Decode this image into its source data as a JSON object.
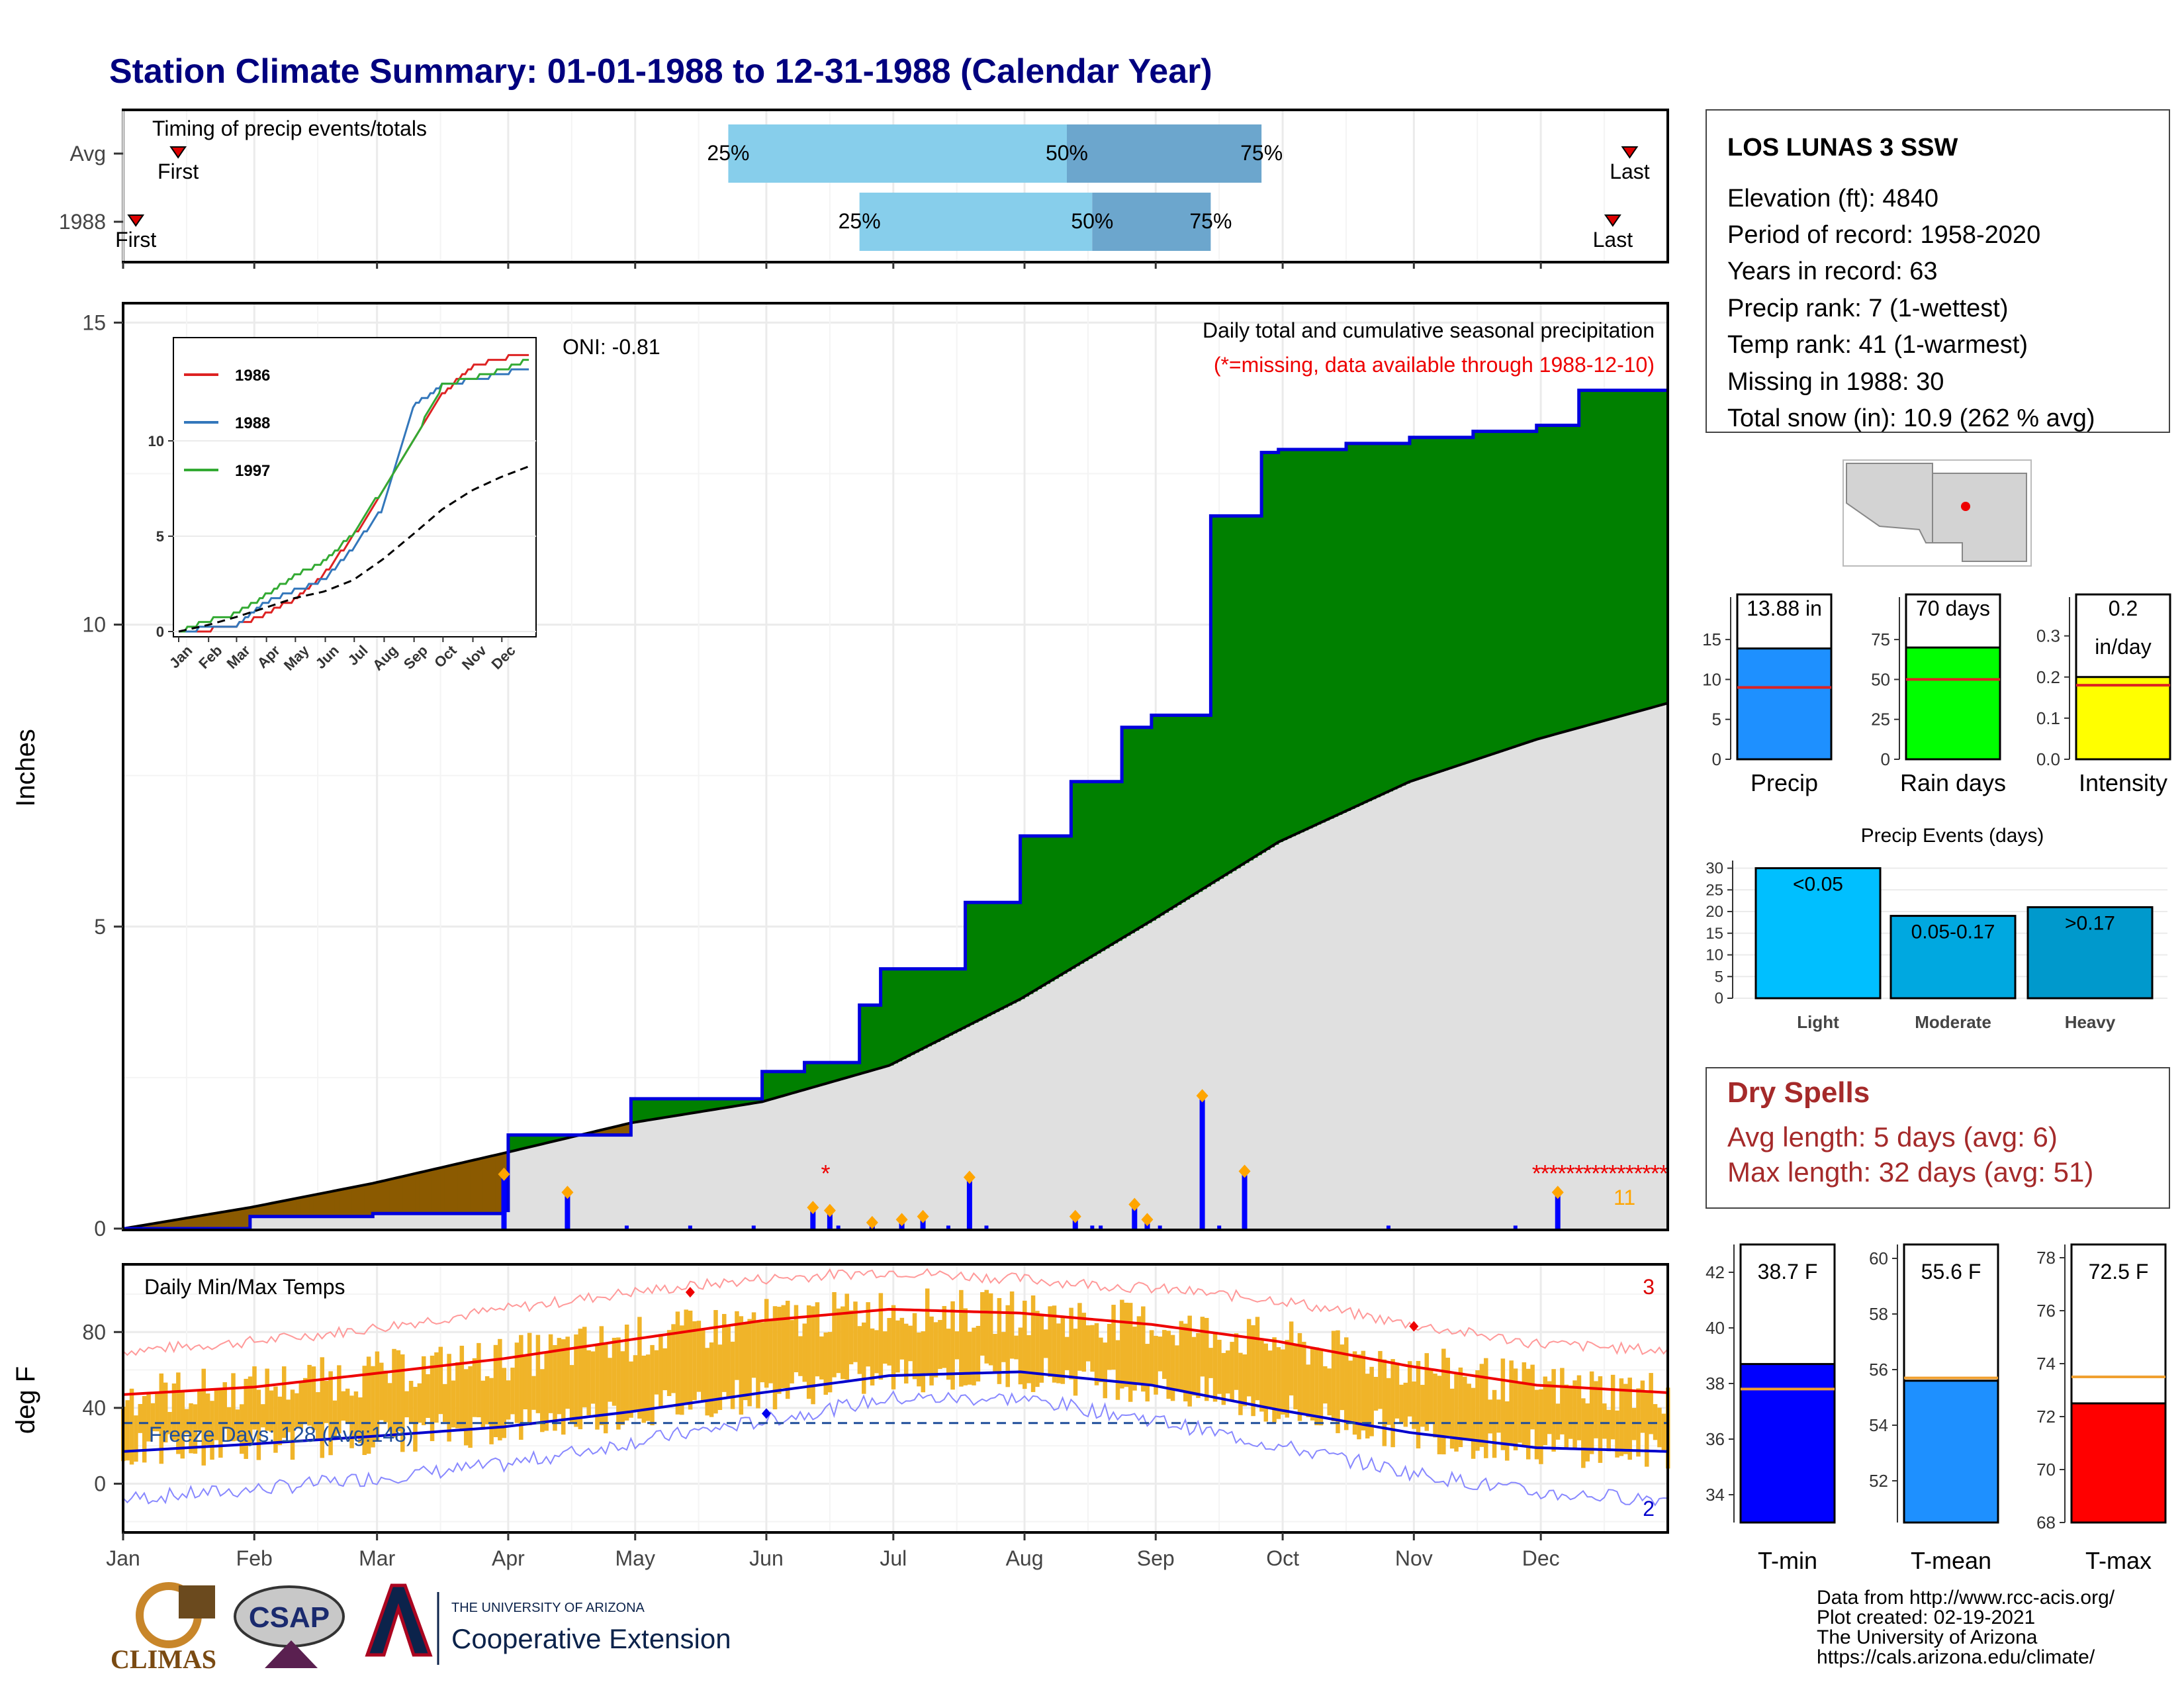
{
  "title": "Station Climate Summary: 01-01-1988 to 12-31-1988 (Calendar Year)",
  "months": [
    "Jan",
    "Feb",
    "Mar",
    "Apr",
    "May",
    "Jun",
    "Jul",
    "Aug",
    "Sep",
    "Oct",
    "Nov",
    "Dec"
  ],
  "timing": {
    "label": "Timing of precip events/totals",
    "row_labels": [
      "Avg",
      "1988"
    ],
    "first_label": "First",
    "last_label": "Last",
    "pct_labels": [
      "25%",
      "50%",
      "75%"
    ],
    "avg": {
      "first_day": 14,
      "q25": 144,
      "q50": 224,
      "q75": 270,
      "last_day": 357
    },
    "year": {
      "first_day": 4,
      "q25": 175,
      "q50": 230,
      "q75": 258,
      "last_day": 353
    }
  },
  "precip_panel": {
    "ylabel": "Inches",
    "yticks": [
      "0",
      "5",
      "10",
      "15"
    ],
    "oni_label": "ONI: -0.81",
    "caption": "Daily total and cumulative seasonal precipitation",
    "missing_note": "(*=missing, data available through 1988-12-10)",
    "missing_count": "11",
    "colors": {
      "above_avg": "#008000",
      "below_avg": "#8B5A00",
      "avg_area": "#e0e0e0",
      "line": "#0000dd",
      "missing": "#ff0000"
    }
  },
  "inset": {
    "yticks": [
      "0",
      "5",
      "10"
    ],
    "months": [
      "Jan",
      "Feb",
      "Mar",
      "Apr",
      "May",
      "Jun",
      "Jul",
      "Aug",
      "Sep",
      "Oct",
      "Nov",
      "Dec"
    ],
    "legend": [
      {
        "name": "1986",
        "color": "#dd2222"
      },
      {
        "name": "1988",
        "color": "#3377bb"
      },
      {
        "name": "1997",
        "color": "#33aa33"
      }
    ]
  },
  "temp_panel": {
    "ylabel": "deg F",
    "yticks": [
      "0",
      "40",
      "80"
    ],
    "title": "Daily Min/Max Temps",
    "freeze_label": "Freeze Days: 128 (Avg:148)",
    "max_records": "3",
    "min_records": "2"
  },
  "station": {
    "name": "LOS LUNAS 3 SSW",
    "lines": [
      "Elevation (ft): 4840",
      "Period of record: 1958-2020",
      "Years in record: 63",
      "Precip rank: 7 (1-wettest)",
      "Temp rank: 41 (1-warmest)",
      "Missing in 1988: 30",
      "Total snow (in): 10.9 (262 % avg)"
    ]
  },
  "precip_bars": [
    {
      "label": "13.88 in",
      "name": "Precip",
      "value": 13.88,
      "avg": 9.0,
      "max": 17,
      "ticks": [
        "0",
        "5",
        "10",
        "15"
      ],
      "color": "#1e90ff"
    },
    {
      "label": "70 days",
      "name": "Rain days",
      "value": 70,
      "avg": 50,
      "max": 85,
      "ticks": [
        "0",
        "25",
        "50",
        "75"
      ],
      "color": "#00ff00"
    },
    {
      "label": "0.2",
      "label2": "in/day",
      "name": "Intensity",
      "value": 0.2,
      "avg": 0.18,
      "max": 0.33,
      "ticks": [
        "0.0",
        "0.1",
        "0.2",
        "0.3"
      ],
      "color": "#ffff00"
    }
  ],
  "events": {
    "title": "Precip Events (days)",
    "yticks": [
      "0",
      "5",
      "10",
      "15",
      "20",
      "25",
      "30"
    ],
    "bars": [
      {
        "name": "Light",
        "label": "<0.05",
        "value": 30,
        "color": "#00bfff"
      },
      {
        "name": "Moderate",
        "label": "0.05-0.17",
        "value": 19,
        "color": "#00a8e0"
      },
      {
        "name": "Heavy",
        "label": ">0.17",
        "value": 21,
        "color": "#0099cc"
      }
    ]
  },
  "dry_spells": {
    "title": "Dry Spells",
    "avg_length": "Avg length: 5 days (avg: 6)",
    "max_length": "Max length: 32 days (avg: 51)"
  },
  "temp_bars": [
    {
      "label": "38.7 F",
      "name": "T-min",
      "value": 38.7,
      "avg": 37.8,
      "min": 33,
      "max": 43,
      "ticks": [
        "34",
        "36",
        "38",
        "40",
        "42"
      ],
      "color": "#0000ff"
    },
    {
      "label": "55.6 F",
      "name": "T-mean",
      "value": 55.6,
      "avg": 55.7,
      "min": 50.5,
      "max": 60.5,
      "ticks": [
        "52",
        "54",
        "56",
        "58",
        "60"
      ],
      "color": "#1e90ff"
    },
    {
      "label": "72.5 F",
      "name": "T-max",
      "value": 72.5,
      "avg": 73.5,
      "min": 68,
      "max": 78.5,
      "ticks": [
        "68",
        "70",
        "72",
        "74",
        "76",
        "78"
      ],
      "color": "#ff0000"
    }
  ],
  "footer": {
    "credits": [
      "Data from http://www.rcc-acis.org/",
      "Plot created: 02-19-2021",
      "The University of Arizona",
      "https://cals.arizona.edu/climate/"
    ],
    "logo1": "CLIMAS",
    "logo2": "CSAP",
    "logo3_small": "THE UNIVERSITY OF ARIZONA",
    "logo3_big": "Cooperative Extension"
  },
  "chart_data": [
    {
      "type": "area",
      "title": "Daily total and cumulative seasonal precipitation",
      "ylabel": "Inches",
      "ylim": [
        0,
        15
      ],
      "series": [
        {
          "name": "1988",
          "x_doy": [
            1,
            31,
            60,
            91,
            92,
            106,
            121,
            152,
            162,
            175,
            180,
            200,
            213,
            225,
            237,
            244,
            258,
            270,
            274,
            290,
            305,
            320,
            335,
            345,
            366
          ],
          "values": [
            0,
            0.2,
            0.25,
            0.3,
            1.55,
            1.55,
            2.15,
            2.6,
            2.75,
            3.7,
            4.3,
            5.4,
            6.5,
            7.4,
            8.3,
            8.5,
            11.8,
            12.85,
            12.9,
            13.0,
            13.1,
            13.2,
            13.3,
            13.88,
            13.88
          ]
        },
        {
          "x_doy": [
            1,
            31,
            60,
            91,
            121,
            152,
            182,
            213,
            244,
            274,
            305,
            335,
            366
          ],
          "values": [
            0,
            0.35,
            0.75,
            1.25,
            1.75,
            2.1,
            2.7,
            3.8,
            5.1,
            6.4,
            7.4,
            8.1,
            8.7
          ]
        }
      ],
      "daily_precip": [
        {
          "doy": 91,
          "value": 0.9
        },
        {
          "doy": 106,
          "value": 0.6
        },
        {
          "doy": 164,
          "value": 0.35
        },
        {
          "doy": 168,
          "value": 0.3
        },
        {
          "doy": 178,
          "value": 0.1
        },
        {
          "doy": 185,
          "value": 0.15
        },
        {
          "doy": 190,
          "value": 0.2
        },
        {
          "doy": 201,
          "value": 0.85
        },
        {
          "doy": 226,
          "value": 0.2
        },
        {
          "doy": 240,
          "value": 0.4
        },
        {
          "doy": 243,
          "value": 0.15
        },
        {
          "doy": 256,
          "value": 2.2
        },
        {
          "doy": 266,
          "value": 0.95
        },
        {
          "doy": 340,
          "value": 0.6
        }
      ]
    },
    {
      "type": "line",
      "title": "Daily Min/Max Temps",
      "ylabel": "deg F",
      "ylim": [
        -25,
        115
      ],
      "series": [
        {
          "x_doy": [
            1,
            32,
            60,
            91,
            121,
            152,
            182,
            213,
            244,
            274,
            305,
            335,
            366
          ],
          "values": [
            47,
            51,
            58,
            66,
            76,
            86,
            92,
            90,
            84,
            75,
            62,
            52,
            48
          ]
        },
        {
          "x_doy": [
            1,
            32,
            60,
            91,
            121,
            152,
            182,
            213,
            244,
            274,
            305,
            335,
            366
          ],
          "values": [
            17,
            21,
            25,
            30,
            38,
            48,
            57,
            59,
            52,
            39,
            27,
            19,
            17
          ]
        },
        {
          "x_doy": [
            1,
            32,
            60,
            91,
            121,
            152,
            182,
            213,
            244,
            274,
            305,
            335,
            366
          ],
          "values": [
            70,
            75,
            82,
            92,
            101,
            108,
            112,
            108,
            103,
            97,
            84,
            74,
            70
          ]
        },
        {
          "x_doy": [
            1,
            32,
            60,
            91,
            121,
            152,
            182,
            213,
            244,
            274,
            305,
            335,
            366
          ],
          "values": [
            -8,
            -3,
            3,
            10,
            22,
            33,
            45,
            45,
            34,
            20,
            6,
            -5,
            -8
          ]
        }
      ]
    },
    {
      "type": "line",
      "ylim": [
        0,
        15
      ],
      "series": [
        {
          "name": "1986",
          "x_doy": [
            1,
            32,
            60,
            91,
            121,
            152,
            182,
            213,
            244,
            274,
            305,
            335,
            366
          ],
          "values": [
            0,
            0.1,
            0.3,
            0.9,
            1.7,
            3.0,
            5.0,
            7.3,
            10.0,
            12.4,
            13.9,
            14.3,
            14.6
          ]
        },
        {
          "name": "1988",
          "x_doy": [
            1,
            32,
            60,
            91,
            121,
            152,
            182,
            213,
            244,
            274,
            305,
            335,
            366
          ],
          "values": [
            0,
            0.2,
            0.25,
            1.55,
            2.15,
            2.7,
            4.4,
            6.5,
            11.8,
            12.9,
            13.2,
            13.5,
            13.9
          ]
        },
        {
          "name": "1997",
          "x_doy": [
            1,
            32,
            60,
            91,
            121,
            152,
            182,
            213,
            244,
            274,
            305,
            335,
            366
          ],
          "values": [
            0,
            0.6,
            0.9,
            1.9,
            2.9,
            3.7,
            5.1,
            7.5,
            10.0,
            12.9,
            13.3,
            13.7,
            14.3
          ]
        },
        {
          "x_doy": [
            1,
            32,
            60,
            91,
            121,
            152,
            182,
            213,
            244,
            274,
            305,
            335,
            366
          ],
          "values": [
            0,
            0.35,
            0.75,
            1.25,
            1.75,
            2.1,
            2.7,
            3.8,
            5.1,
            6.4,
            7.4,
            8.1,
            8.7
          ]
        }
      ]
    }
  ]
}
